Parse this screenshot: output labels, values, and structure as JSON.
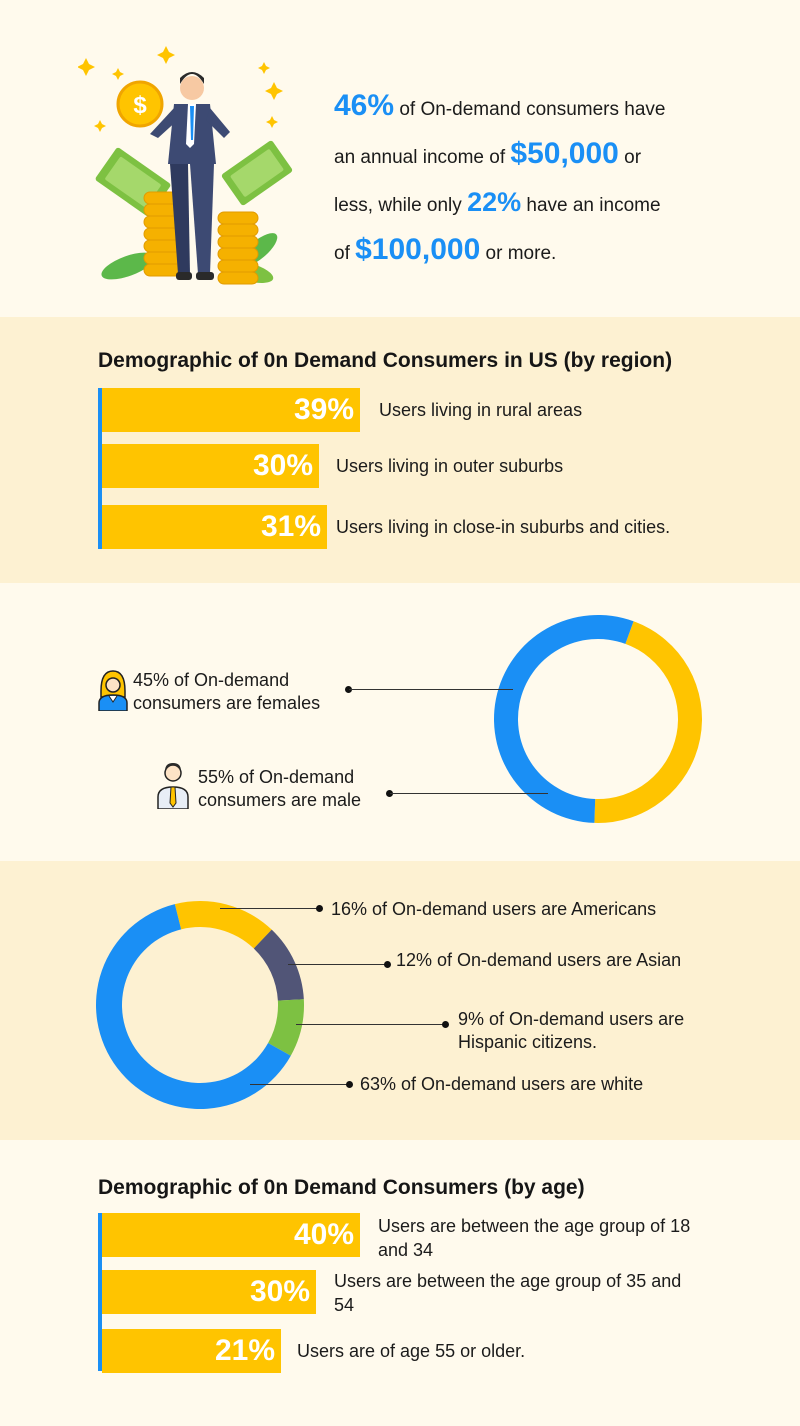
{
  "income": {
    "lines": [
      {
        "pct": "46%",
        "text": " of On-demand consumers have"
      },
      {
        "pre": "an annual income of ",
        "amount": "$50,000",
        "post": " or"
      },
      {
        "pre": "less, while only ",
        "pct": "22%",
        "post": " have an income"
      },
      {
        "pre": "of ",
        "amount": "$100,000",
        "post": " or more."
      }
    ]
  },
  "region": {
    "title": "Demographic of 0n Demand Consumers in US (by region)",
    "rows": [
      {
        "pct": "39%",
        "label": "Users living in rural areas"
      },
      {
        "pct": "30%",
        "label": "Users living in outer suburbs"
      },
      {
        "pct": "31%",
        "label": "Users  living in close-in suburbs and cities."
      }
    ]
  },
  "gender": {
    "female": "45% of On-demand consumers are females",
    "male": "55% of On-demand consumers are male"
  },
  "ethnicity": {
    "americans": "16% of On-demand users are Americans",
    "asian": "12% of On-demand users are Asian",
    "hispanic": "9% of On-demand users are Hispanic citizens.",
    "white": "63% of On-demand users are white"
  },
  "age": {
    "title": "Demographic of 0n Demand Consumers (by age)",
    "rows": [
      {
        "pct": "40%",
        "label": "Users are between the age group of 18 and 34"
      },
      {
        "pct": "30%",
        "label": "Users are between the age group of 35 and 54"
      },
      {
        "pct": "21%",
        "label": "Users are of age 55 or older."
      }
    ]
  },
  "colors": {
    "yellow": "#ffc400",
    "blue": "#1a8ff5",
    "slate": "#515577",
    "green": "#7dc142"
  },
  "icons": [
    "money-man-illustration",
    "female-user-icon",
    "male-user-icon"
  ],
  "chart_data": [
    {
      "type": "bar",
      "title": "Demographic of 0n Demand Consumers in US (by region)",
      "categories": [
        "Users living in rural areas",
        "Users living in outer suburbs",
        "Users  living in close-in suburbs and cities."
      ],
      "values": [
        39,
        30,
        31
      ]
    },
    {
      "type": "pie",
      "categories": [
        "females",
        "male"
      ],
      "values": [
        45,
        55
      ],
      "colors": [
        "#ffc400",
        "#1a8ff5"
      ]
    },
    {
      "type": "pie",
      "categories": [
        "Americans",
        "Asian",
        "Hispanic citizens.",
        "white"
      ],
      "values": [
        16,
        12,
        9,
        63
      ],
      "colors": [
        "#ffc400",
        "#515577",
        "#7dc142",
        "#1a8ff5"
      ]
    },
    {
      "type": "bar",
      "title": "Demographic of 0n Demand Consumers (by age)",
      "categories": [
        "Users are between the age group of 18 and 34",
        "Users are between the age group of 35 and 54",
        "Users are of age 55 or older."
      ],
      "values": [
        40,
        30,
        21
      ]
    }
  ]
}
